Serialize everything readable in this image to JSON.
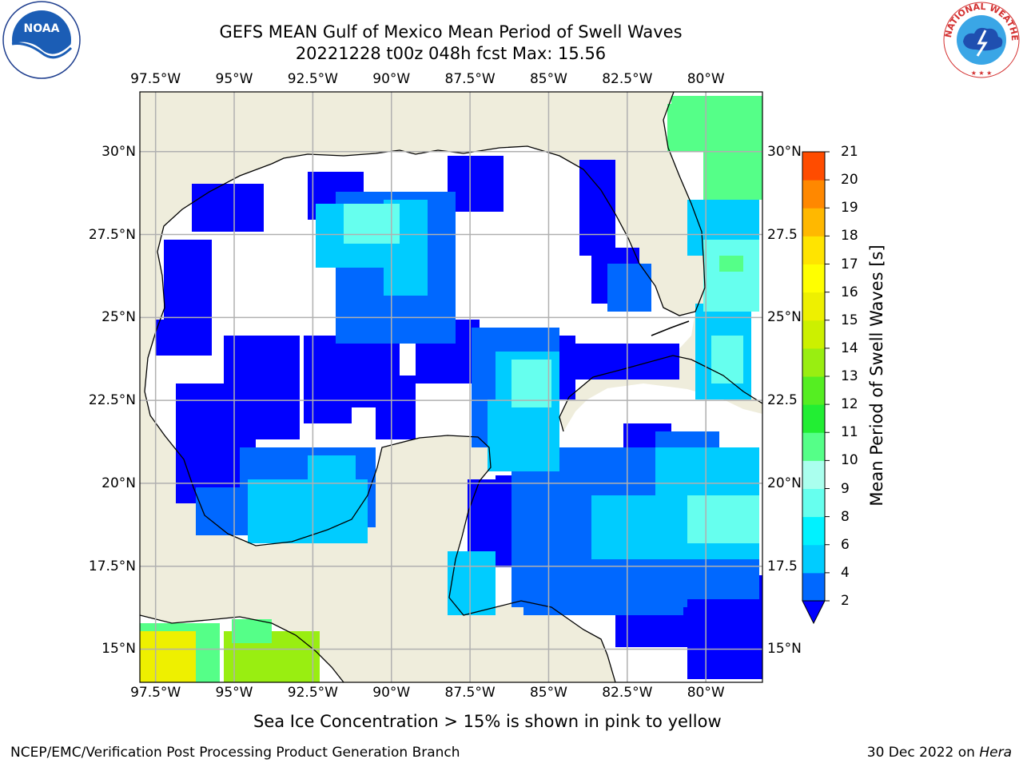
{
  "header": {
    "title_line1": "GEFS MEAN Gulf of Mexico Mean Period of Swell Waves",
    "title_line2": "20221228 t00z 048h fcst   Max: 15.56"
  },
  "map": {
    "lon_range": [
      -98,
      -78.2
    ],
    "lat_range": [
      14,
      31.8
    ],
    "lon_ticks": [
      "97.5°W",
      "95°W",
      "92.5°W",
      "90°W",
      "87.5°W",
      "85°W",
      "82.5°W",
      "80°W"
    ],
    "lat_ticks_left": [
      "30°N",
      "27.5°N",
      "25°N",
      "22.5°N",
      "20°N",
      "17.5°N",
      "15°N"
    ],
    "lat_ticks_right": [
      "30°N",
      "27.5",
      "25°N",
      "22.5",
      "20°N",
      "17.5",
      "15°N"
    ],
    "grid": true,
    "colors": {
      "land": "#efeddc",
      "ocean_missing": "#ffffff",
      "coast": "#000000",
      "grid": "#b0b0b0"
    }
  },
  "colorbar": {
    "label": "Mean Period of Swell Waves [s]",
    "ticks": [
      "2",
      "4",
      "6",
      "8",
      "9",
      "10",
      "11",
      "12",
      "13",
      "14",
      "15",
      "16",
      "17",
      "18",
      "19",
      "20",
      "21"
    ],
    "colors": [
      "#0068ff",
      "#00ccff",
      "#00f2ff",
      "#66ffee",
      "#aaffee",
      "#55ff88",
      "#22ee33",
      "#55ee22",
      "#99ee11",
      "#ccf000",
      "#eef000",
      "#ffff00",
      "#ffe400",
      "#ffb800",
      "#ff8800",
      "#ff4c00",
      "#ff1a00",
      "#ff0000"
    ],
    "under_color": "#0000ff"
  },
  "note": "Sea Ice Concentration > 15% is shown in pink to yellow",
  "footer": {
    "left": "NCEP/EMC/Verification Post Processing Product Generation Branch",
    "date": "30 Dec 2022 on ",
    "machine": "Hera"
  },
  "logos": {
    "noaa": "NOAA",
    "nws": "NATIONAL WEATHER SERVICE"
  }
}
